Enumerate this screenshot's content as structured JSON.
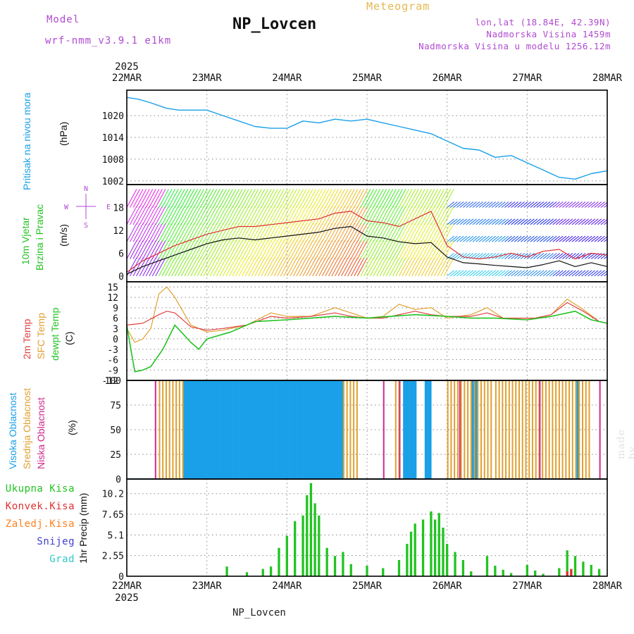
{
  "header": {
    "model_label": "Model",
    "model_name": "wrf-nmm_v3.9.1 e1km",
    "station": "NP_Lovcen",
    "meteogram": "Meteogram",
    "lonlat": "lon,lat (18.84E, 42.39N)",
    "elevation": "Nadmorska Visina 1459m",
    "model_elevation": "Nadmorska Visina u modelu 1256.12m"
  },
  "time_axis": {
    "year": "2025",
    "labels": [
      "22MAR",
      "23MAR",
      "24MAR",
      "25MAR",
      "26MAR",
      "27MAR",
      "28MAR"
    ]
  },
  "footer": {
    "station": "NP_Lovcen"
  },
  "watermark": "made by Angel",
  "colors": {
    "pressure": "#1aa0e8",
    "wind_label": "#22c322",
    "wind_speed": "#111111",
    "wind_gust": "#e03030",
    "temp2m": "#e04040",
    "sfc_temp": "#e0a030",
    "dewpt": "#22c322",
    "high_cloud": "#1aa0e8",
    "mid_cloud": "#e0a030",
    "low_cloud": "#d02a8a",
    "precip_total": "#22c322",
    "precip_conv": "#e03030",
    "precip_frozen": "#ff8020",
    "snow": "#4040d0",
    "hail": "#30c8c8",
    "compass": "#b04ad0"
  },
  "panels": {
    "pressure": {
      "label": "Pritisak na nivou mora",
      "unit": "(hPa)",
      "ticks": [
        "1002",
        "1008",
        "1014",
        "1020"
      ]
    },
    "wind": {
      "label1": "10m Vjetar",
      "label2": "Brzina i Pravac",
      "unit": "(m/s)",
      "ticks": [
        "0",
        "6",
        "12",
        "18"
      ],
      "compass": {
        "north": "N",
        "west": "W",
        "east": "E",
        "south": "S"
      }
    },
    "temp": {
      "label_t2": "2m Temp",
      "label_sfc": "SFC Temp",
      "label_dew": "dewpt Temp",
      "unit": "(C)",
      "ticks": [
        "-12",
        "-9",
        "-6",
        "-3",
        "0",
        "3",
        "6",
        "9",
        "12",
        "15"
      ]
    },
    "cloud": {
      "label_high": "Visoka Oblacnost",
      "label_mid": "Srednja Oblacnost",
      "label_low": "Niska Oblacnost",
      "unit": "(%)",
      "ticks": [
        "0",
        "25",
        "50",
        "75",
        "100"
      ]
    },
    "precip": {
      "label": "1hr Precip (mm)",
      "ticks": [
        "0",
        "2.55",
        "5.1",
        "7.65",
        "10.2"
      ],
      "legend": [
        "Ukupna Kisa",
        "Konvek.Kisa",
        "Zaledj.Kisa",
        "Snijeg",
        "Grad"
      ]
    }
  },
  "chart_data": [
    {
      "type": "line",
      "title": "Pritisak na nivou mora",
      "ylabel": "(hPa)",
      "x_unit": "days since 22MAR 00",
      "ylim": [
        1001,
        1027
      ],
      "series": [
        {
          "name": "Pritisak na nivou mora",
          "x": [
            0,
            0.15,
            0.3,
            0.5,
            0.65,
            0.8,
            1.0,
            1.2,
            1.4,
            1.6,
            1.8,
            2.0,
            2.2,
            2.4,
            2.6,
            2.8,
            3.0,
            3.2,
            3.4,
            3.6,
            3.8,
            4.0,
            4.2,
            4.4,
            4.6,
            4.8,
            5.0,
            5.2,
            5.4,
            5.6,
            5.8,
            6.0
          ],
          "values": [
            1025,
            1024.5,
            1023.5,
            1022,
            1021.5,
            1021.5,
            1021.5,
            1020,
            1018.5,
            1017,
            1016.5,
            1016.5,
            1018.5,
            1018,
            1019,
            1018.5,
            1019,
            1018,
            1017,
            1016,
            1015,
            1013,
            1011,
            1010.5,
            1008.5,
            1009,
            1007,
            1005,
            1003,
            1002.5,
            1004,
            1004.8
          ]
        }
      ]
    },
    {
      "type": "line",
      "title": "10m Vjetar Brzina i Pravac",
      "ylabel": "(m/s)",
      "x_unit": "days since 22MAR 00",
      "ylim": [
        -1.5,
        24
      ],
      "series": [
        {
          "name": "speed",
          "x": [
            0,
            0.2,
            0.4,
            0.6,
            0.8,
            1.0,
            1.2,
            1.4,
            1.6,
            1.8,
            2.0,
            2.2,
            2.4,
            2.6,
            2.8,
            3.0,
            3.2,
            3.4,
            3.6,
            3.8,
            4.0,
            4.2,
            4.4,
            4.6,
            4.8,
            5.0,
            5.2,
            5.4,
            5.6,
            5.8,
            6.0
          ],
          "values": [
            0.5,
            2.5,
            4,
            5.5,
            7,
            8.5,
            9.5,
            10,
            9.5,
            10,
            10.5,
            11,
            11.5,
            12.5,
            13,
            10.5,
            10,
            9,
            8.5,
            8.8,
            5,
            3.5,
            3.2,
            2.8,
            2.5,
            2.2,
            3,
            4,
            2.5,
            3.5,
            2.5
          ]
        },
        {
          "name": "gust",
          "x": [
            0,
            0.2,
            0.4,
            0.6,
            0.8,
            1.0,
            1.2,
            1.4,
            1.6,
            1.8,
            2.0,
            2.2,
            2.4,
            2.6,
            2.8,
            3.0,
            3.2,
            3.4,
            3.6,
            3.8,
            4.0,
            4.2,
            4.4,
            4.6,
            4.8,
            5.0,
            5.2,
            5.4,
            5.6,
            5.8,
            6.0
          ],
          "values": [
            1,
            4,
            6,
            8,
            9.5,
            11,
            12,
            13,
            13,
            13.5,
            14,
            14.5,
            15,
            16.5,
            17,
            14.5,
            14,
            13,
            15,
            17,
            8,
            5,
            4.5,
            5,
            6,
            5,
            6.5,
            7,
            4.5,
            6,
            5.5
          ]
        }
      ]
    },
    {
      "type": "line",
      "title": "2m Temp / SFC Temp / dewpt Temp",
      "ylabel": "(C)",
      "x_unit": "days since 22MAR 00",
      "ylim": [
        -12,
        16.5
      ],
      "series": [
        {
          "name": "2m Temp",
          "x": [
            0,
            0.2,
            0.4,
            0.5,
            0.6,
            0.8,
            1.0,
            1.2,
            1.5,
            1.8,
            2.0,
            2.3,
            2.6,
            2.8,
            3.0,
            3.2,
            3.4,
            3.6,
            3.8,
            4.0,
            4.3,
            4.5,
            4.7,
            4.9,
            5.1,
            5.3,
            5.5,
            5.7,
            5.9,
            6.0
          ],
          "values": [
            4,
            4.5,
            7,
            8,
            7.5,
            3.5,
            2.5,
            3,
            4,
            6.5,
            6,
            6.5,
            7.5,
            6.5,
            6,
            6,
            7,
            8,
            7,
            6.5,
            6.5,
            7.5,
            6,
            6,
            6,
            7,
            10.5,
            8,
            5,
            4.5
          ]
        },
        {
          "name": "SFC Temp",
          "x": [
            0,
            0.1,
            0.2,
            0.3,
            0.4,
            0.5,
            0.6,
            0.8,
            1.0,
            1.2,
            1.5,
            1.8,
            2.0,
            2.3,
            2.6,
            2.8,
            3.0,
            3.2,
            3.4,
            3.6,
            3.8,
            4.0,
            4.3,
            4.5,
            4.7,
            4.9,
            5.1,
            5.3,
            5.5,
            5.7,
            5.9,
            6.0
          ],
          "values": [
            3,
            -1,
            0,
            3,
            13,
            15,
            12,
            4,
            2,
            2.5,
            4,
            7.5,
            6.5,
            6.5,
            9,
            7.5,
            6,
            6.5,
            10,
            8.5,
            9,
            6,
            7,
            9,
            6,
            6,
            6,
            7,
            11.5,
            8.5,
            5,
            4.5
          ]
        },
        {
          "name": "dewpt Temp",
          "x": [
            0,
            0.05,
            0.1,
            0.2,
            0.3,
            0.45,
            0.6,
            0.8,
            0.9,
            1.0,
            1.3,
            1.6,
            2.0,
            2.3,
            2.6,
            3.0,
            3.3,
            3.6,
            4.0,
            4.3,
            4.6,
            5.0,
            5.3,
            5.6,
            5.8,
            6.0
          ],
          "values": [
            4,
            -3,
            -9.5,
            -9,
            -8,
            -3,
            4,
            -1,
            -3,
            0,
            2,
            5,
            5.5,
            6,
            6.5,
            6,
            6.5,
            7,
            6.5,
            6,
            6,
            5.5,
            6.5,
            8,
            5.5,
            4.5
          ]
        }
      ]
    },
    {
      "type": "bar",
      "title": "Visoka / Srednja / Niska Oblacnost",
      "ylabel": "(%)",
      "ylim": [
        0,
        100
      ],
      "series": [
        {
          "name": "Visoka Oblacnost",
          "spans": [
            [
              0.7,
              2.7
            ],
            [
              3.45,
              3.6
            ],
            [
              3.72,
              3.82
            ],
            [
              4.3,
              4.4
            ],
            [
              5.6,
              5.65
            ]
          ],
          "value": 100
        },
        {
          "name": "Srednja Oblacnost",
          "spans": [
            [
              0.4,
              0.75
            ],
            [
              2.7,
              2.9
            ],
            [
              3.35,
              3.45
            ],
            [
              4.0,
              4.6
            ],
            [
              4.6,
              5.8
            ]
          ],
          "value": 100
        },
        {
          "name": "Niska Oblacnost",
          "spans": [
            [
              0.35,
              0.4
            ],
            [
              3.2,
              3.25
            ],
            [
              3.4,
              3.45
            ],
            [
              4.15,
              4.2
            ],
            [
              5.15,
              5.2
            ],
            [
              5.9,
              5.95
            ]
          ],
          "value": 100
        }
      ]
    },
    {
      "type": "bar",
      "title": "1hr Precip",
      "ylabel": "1hr Precip (mm)",
      "x_unit": "days since 22MAR 00",
      "ylim": [
        0,
        12
      ],
      "series": [
        {
          "name": "Ukupna Kisa",
          "x": [
            1.25,
            1.5,
            1.7,
            1.8,
            1.9,
            2.0,
            2.1,
            2.2,
            2.25,
            2.3,
            2.35,
            2.4,
            2.5,
            2.6,
            2.7,
            2.8,
            3.0,
            3.2,
            3.4,
            3.5,
            3.55,
            3.6,
            3.7,
            3.8,
            3.85,
            3.9,
            3.95,
            4.0,
            4.1,
            4.2,
            4.3,
            4.5,
            4.6,
            4.7,
            4.8,
            5.0,
            5.1,
            5.2,
            5.4,
            5.5,
            5.6,
            5.7,
            5.8,
            5.9
          ],
          "values": [
            1.2,
            0.5,
            0.9,
            1.2,
            3.5,
            5,
            6.8,
            7.5,
            10,
            11.5,
            9,
            7.5,
            3.5,
            2.5,
            3,
            1.5,
            1.3,
            1,
            2,
            4,
            5.5,
            6.5,
            7,
            8,
            7,
            7.8,
            6,
            4,
            3,
            2,
            0.6,
            2.5,
            1.3,
            0.8,
            0.4,
            1.4,
            0.7,
            0.3,
            1,
            3.2,
            2.5,
            1.8,
            1.4,
            0.9
          ]
        },
        {
          "name": "Konvek.Kisa",
          "x": [
            5.5,
            5.55
          ],
          "values": [
            0.6,
            0.9
          ]
        }
      ]
    }
  ]
}
